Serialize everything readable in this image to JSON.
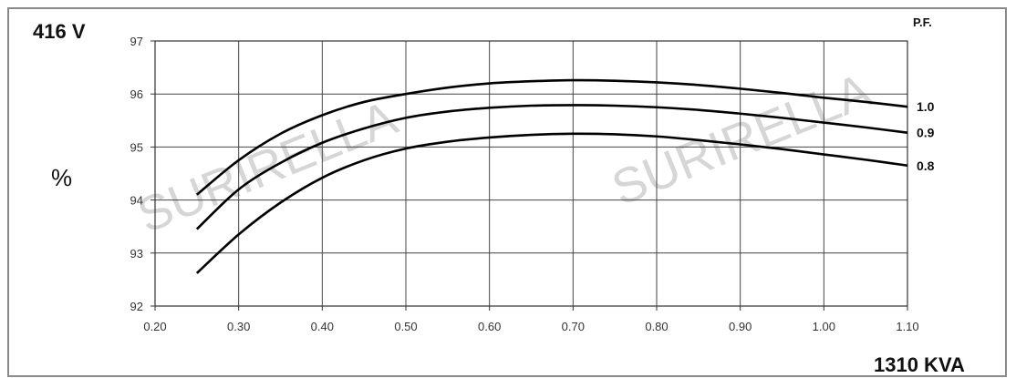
{
  "labels": {
    "voltage": "416 V",
    "percent": "%",
    "pf_header": "P.F.",
    "kva": "1310 KVA",
    "watermark": "SURIRELLA"
  },
  "chart_data": {
    "type": "line",
    "xlim": [
      0.2,
      1.1
    ],
    "ylim": [
      92,
      97
    ],
    "x_ticks": [
      "0.20",
      "0.30",
      "0.40",
      "0.50",
      "0.60",
      "0.70",
      "0.80",
      "0.90",
      "1.00",
      "1.10"
    ],
    "y_ticks": [
      "92",
      "93",
      "94",
      "95",
      "96",
      "97"
    ],
    "grid": true,
    "legend": "right-end-labels",
    "series": [
      {
        "name": "1.0",
        "x": [
          0.25,
          0.3,
          0.35,
          0.4,
          0.45,
          0.5,
          0.55,
          0.6,
          0.65,
          0.7,
          0.75,
          0.8,
          0.85,
          0.9,
          0.95,
          1.0,
          1.05,
          1.1
        ],
        "values": [
          94.1,
          94.75,
          95.25,
          95.6,
          95.85,
          96.0,
          96.12,
          96.2,
          96.24,
          96.26,
          96.25,
          96.22,
          96.17,
          96.1,
          96.02,
          95.93,
          95.85,
          95.76
        ]
      },
      {
        "name": "0.9",
        "x": [
          0.25,
          0.3,
          0.35,
          0.4,
          0.45,
          0.5,
          0.55,
          0.6,
          0.65,
          0.7,
          0.75,
          0.8,
          0.85,
          0.9,
          0.95,
          1.0,
          1.05,
          1.1
        ],
        "values": [
          93.45,
          94.2,
          94.7,
          95.08,
          95.35,
          95.55,
          95.67,
          95.74,
          95.78,
          95.79,
          95.78,
          95.75,
          95.7,
          95.63,
          95.55,
          95.46,
          95.37,
          95.27
        ]
      },
      {
        "name": "0.8",
        "x": [
          0.25,
          0.3,
          0.35,
          0.4,
          0.45,
          0.5,
          0.55,
          0.6,
          0.65,
          0.7,
          0.75,
          0.8,
          0.85,
          0.9,
          0.95,
          1.0,
          1.05,
          1.1
        ],
        "values": [
          92.62,
          93.35,
          93.95,
          94.42,
          94.75,
          94.97,
          95.1,
          95.18,
          95.23,
          95.25,
          95.24,
          95.2,
          95.13,
          95.05,
          94.96,
          94.86,
          94.76,
          94.65
        ]
      }
    ]
  }
}
